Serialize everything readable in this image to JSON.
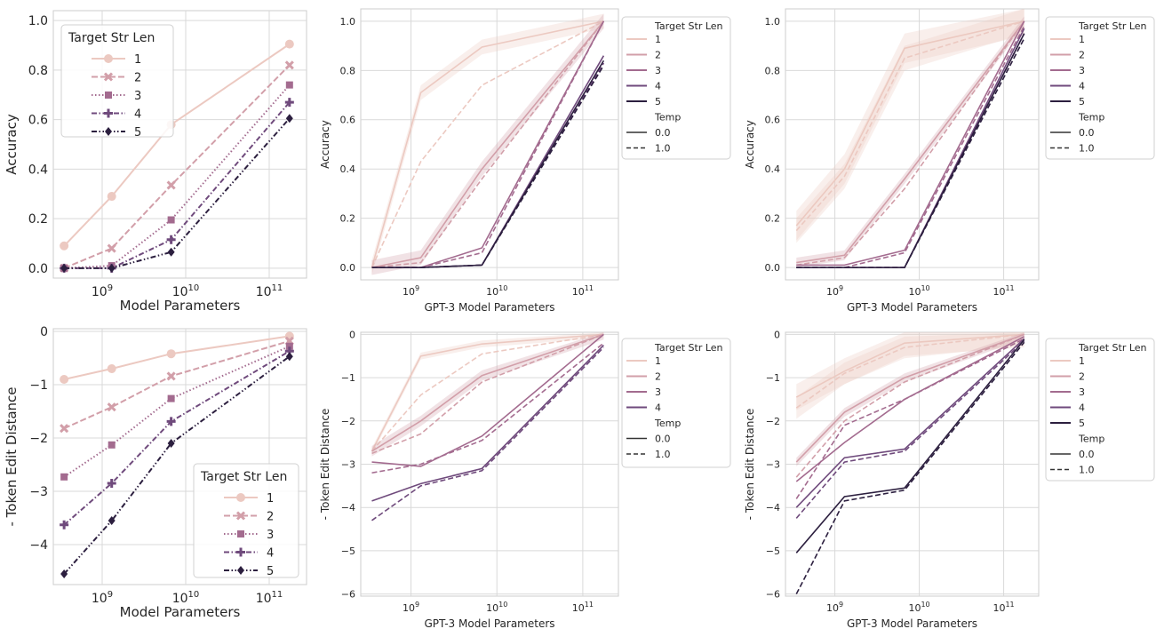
{
  "colors": {
    "len1": "#ecc9c1",
    "len2": "#d29fa9",
    "len3": "#a36b8f",
    "len4": "#6f4a7c",
    "len5": "#2c1f3f",
    "grid": "#d9d9d9",
    "axis_bg": "#ffffff"
  },
  "chart_data": [
    {
      "id": "p1",
      "type": "line",
      "xlabel": "Model Parameters",
      "ylabel": "Accuracy",
      "xscale": "log",
      "xlim": [
        260000000.0,
        280000000000.0
      ],
      "ylim": [
        -0.04,
        1.04
      ],
      "yticks": [
        0.0,
        0.2,
        0.4,
        0.6,
        0.8,
        1.0
      ],
      "ytick_labels": [
        "0.0",
        "0.2",
        "0.4",
        "0.6",
        "0.8",
        "1.0"
      ],
      "x": [
        350000000.0,
        1300000000.0,
        6700000000.0,
        175000000000.0
      ],
      "legend": {
        "title": "Target Str Len",
        "placement": "upper-left",
        "markers": true
      },
      "series": [
        {
          "name": "1",
          "color_key": "len1",
          "dash": "solid",
          "marker": "circle",
          "values": [
            0.09,
            0.29,
            0.58,
            0.905
          ]
        },
        {
          "name": "2",
          "color_key": "len2",
          "dash": "dashed",
          "marker": "x",
          "values": [
            0.0,
            0.08,
            0.335,
            0.82
          ]
        },
        {
          "name": "3",
          "color_key": "len3",
          "dash": "dotted",
          "marker": "square",
          "values": [
            0.0,
            0.01,
            0.195,
            0.74
          ]
        },
        {
          "name": "4",
          "color_key": "len4",
          "dash": "dashdot",
          "marker": "plus",
          "values": [
            0.0,
            0.0,
            0.115,
            0.67
          ]
        },
        {
          "name": "5",
          "color_key": "len5",
          "dash": "dashdotdot",
          "marker": "diamond",
          "values": [
            0.0,
            0.0,
            0.065,
            0.605
          ]
        }
      ]
    },
    {
      "id": "p2",
      "type": "line",
      "xlabel": "GPT-3 Model Parameters",
      "ylabel": "Accuracy",
      "xscale": "log",
      "xlim": [
        260000000.0,
        260000000000.0
      ],
      "ylim": [
        -0.05,
        1.05
      ],
      "yticks": [
        0.0,
        0.2,
        0.4,
        0.6,
        0.8,
        1.0
      ],
      "ytick_labels": [
        "0.0",
        "0.2",
        "0.4",
        "0.6",
        "0.8",
        "1.0"
      ],
      "x": [
        350000000.0,
        1300000000.0,
        6700000000.0,
        175000000000.0
      ],
      "legend": {
        "title": "Target Str Len",
        "placement": "outside-right",
        "temp_title": "Temp",
        "temp_entries": [
          "0.0",
          "1.0"
        ]
      },
      "series": [
        {
          "name": "1",
          "color_key": "len1",
          "temp": "0.0",
          "values": [
            0.0,
            0.71,
            0.895,
            1.0
          ],
          "band": 0.03
        },
        {
          "name": "1",
          "color_key": "len1",
          "temp": "1.0",
          "values": [
            0.0,
            0.43,
            0.74,
            1.0
          ],
          "band": 0.0
        },
        {
          "name": "2",
          "color_key": "len2",
          "temp": "0.0",
          "values": [
            0.0,
            0.04,
            0.4,
            1.0
          ],
          "band": 0.03
        },
        {
          "name": "2",
          "color_key": "len2",
          "temp": "1.0",
          "values": [
            0.0,
            0.02,
            0.36,
            1.0
          ],
          "band": 0.0
        },
        {
          "name": "3",
          "color_key": "len3",
          "temp": "0.0",
          "values": [
            0.0,
            0.0,
            0.08,
            1.0
          ],
          "band": 0.0
        },
        {
          "name": "3",
          "color_key": "len3",
          "temp": "1.0",
          "values": [
            0.0,
            0.0,
            0.06,
            1.0
          ],
          "band": 0.0
        },
        {
          "name": "4",
          "color_key": "len4",
          "temp": "0.0",
          "values": [
            0.0,
            0.0,
            0.01,
            0.86
          ],
          "band": 0.0
        },
        {
          "name": "4",
          "color_key": "len4",
          "temp": "1.0",
          "values": [
            0.0,
            0.0,
            0.01,
            0.83
          ],
          "band": 0.0
        },
        {
          "name": "5",
          "color_key": "len5",
          "temp": "0.0",
          "values": [
            0.0,
            0.0,
            0.01,
            0.84
          ],
          "band": 0.0
        },
        {
          "name": "5",
          "color_key": "len5",
          "temp": "1.0",
          "values": [
            0.0,
            0.0,
            0.01,
            0.82
          ],
          "band": 0.0
        }
      ],
      "legend_entries": [
        "1",
        "2",
        "3",
        "4",
        "5"
      ]
    },
    {
      "id": "p3",
      "type": "line",
      "xlabel": "GPT-3 Model Parameters",
      "ylabel": "Accuracy",
      "xscale": "log",
      "xlim": [
        260000000.0,
        260000000000.0
      ],
      "ylim": [
        -0.05,
        1.05
      ],
      "yticks": [
        0.0,
        0.2,
        0.4,
        0.6,
        0.8,
        1.0
      ],
      "ytick_labels": [
        "0.0",
        "0.2",
        "0.4",
        "0.6",
        "0.8",
        "1.0"
      ],
      "x": [
        350000000.0,
        1300000000.0,
        6700000000.0,
        175000000000.0
      ],
      "legend": {
        "title": "Target Str Len",
        "placement": "outside-right",
        "temp_title": "Temp",
        "temp_entries": [
          "0.0",
          "1.0"
        ]
      },
      "series": [
        {
          "name": "1",
          "color_key": "len1",
          "temp": "0.0",
          "values": [
            0.17,
            0.4,
            0.89,
            1.0
          ],
          "band": 0.06
        },
        {
          "name": "1",
          "color_key": "len1",
          "temp": "1.0",
          "values": [
            0.15,
            0.37,
            0.85,
            1.0
          ],
          "band": 0.05
        },
        {
          "name": "2",
          "color_key": "len2",
          "temp": "0.0",
          "values": [
            0.02,
            0.05,
            0.36,
            1.0
          ],
          "band": 0.02
        },
        {
          "name": "2",
          "color_key": "len2",
          "temp": "1.0",
          "values": [
            0.01,
            0.04,
            0.32,
            1.0
          ],
          "band": 0.0
        },
        {
          "name": "3",
          "color_key": "len3",
          "temp": "0.0",
          "values": [
            0.01,
            0.01,
            0.07,
            1.0
          ],
          "band": 0.0
        },
        {
          "name": "3",
          "color_key": "len3",
          "temp": "1.0",
          "values": [
            0.0,
            0.0,
            0.06,
            0.98
          ],
          "band": 0.0
        },
        {
          "name": "4",
          "color_key": "len4",
          "temp": "0.0",
          "values": [
            0.0,
            0.0,
            0.0,
            0.97
          ],
          "band": 0.0
        },
        {
          "name": "4",
          "color_key": "len4",
          "temp": "1.0",
          "values": [
            0.0,
            0.0,
            0.0,
            0.95
          ],
          "band": 0.0
        },
        {
          "name": "5",
          "color_key": "len5",
          "temp": "0.0",
          "values": [
            0.0,
            0.0,
            0.0,
            0.95
          ],
          "band": 0.0
        },
        {
          "name": "5",
          "color_key": "len5",
          "temp": "1.0",
          "values": [
            0.0,
            0.0,
            0.0,
            0.93
          ],
          "band": 0.0
        }
      ],
      "legend_entries": [
        "1",
        "2",
        "3",
        "4",
        "5"
      ]
    },
    {
      "id": "p4",
      "type": "line",
      "xlabel": "Model Parameters",
      "ylabel": "- Token Edit Distance",
      "xscale": "log",
      "xlim": [
        260000000.0,
        280000000000.0
      ],
      "ylim": [
        -4.75,
        0.05
      ],
      "yticks": [
        0,
        -1,
        -2,
        -3,
        -4
      ],
      "ytick_labels": [
        "0",
        "−1",
        "−2",
        "−3",
        "−4"
      ],
      "x": [
        350000000.0,
        1300000000.0,
        6700000000.0,
        175000000000.0
      ],
      "legend": {
        "title": "Target Str Len",
        "placement": "lower-right",
        "markers": true
      },
      "series": [
        {
          "name": "1",
          "color_key": "len1",
          "dash": "solid",
          "marker": "circle",
          "values": [
            -0.9,
            -0.7,
            -0.42,
            -0.09
          ]
        },
        {
          "name": "2",
          "color_key": "len2",
          "dash": "dashed",
          "marker": "x",
          "values": [
            -1.82,
            -1.42,
            -0.84,
            -0.18
          ]
        },
        {
          "name": "3",
          "color_key": "len3",
          "dash": "dotted",
          "marker": "square",
          "values": [
            -2.73,
            -2.13,
            -1.26,
            -0.28
          ]
        },
        {
          "name": "4",
          "color_key": "len4",
          "dash": "dashdot",
          "marker": "plus",
          "values": [
            -3.63,
            -2.85,
            -1.69,
            -0.37
          ]
        },
        {
          "name": "5",
          "color_key": "len5",
          "dash": "dashdotdot",
          "marker": "diamond",
          "values": [
            -4.55,
            -3.55,
            -2.1,
            -0.47
          ]
        }
      ]
    },
    {
      "id": "p5",
      "type": "line",
      "xlabel": "GPT-3 Model Parameters",
      "ylabel": "- Token Edit Distance",
      "xscale": "log",
      "xlim": [
        260000000.0,
        260000000000.0
      ],
      "ylim": [
        -6.05,
        0.05
      ],
      "yticks": [
        0,
        -1,
        -2,
        -3,
        -4,
        -5,
        -6
      ],
      "ytick_labels": [
        "0",
        "−1",
        "−2",
        "−3",
        "−4",
        "−5",
        "−6"
      ],
      "x": [
        350000000.0,
        1300000000.0,
        6700000000.0,
        175000000000.0
      ],
      "legend": {
        "title": "Target Str Len",
        "placement": "outside-right",
        "temp_title": "Temp",
        "temp_entries": [
          "0.0",
          "1.0"
        ]
      },
      "series": [
        {
          "name": "1",
          "color_key": "len1",
          "temp": "0.0",
          "values": [
            -2.7,
            -0.5,
            -0.22,
            0.0
          ],
          "band": 0.08
        },
        {
          "name": "1",
          "color_key": "len1",
          "temp": "1.0",
          "values": [
            -2.7,
            -1.4,
            -0.45,
            0.0
          ],
          "band": 0.0
        },
        {
          "name": "2",
          "color_key": "len2",
          "temp": "0.0",
          "values": [
            -2.7,
            -2.0,
            -0.95,
            0.0
          ],
          "band": 0.12
        },
        {
          "name": "2",
          "color_key": "len2",
          "temp": "1.0",
          "values": [
            -2.75,
            -2.3,
            -1.1,
            0.0
          ],
          "band": 0.0
        },
        {
          "name": "3",
          "color_key": "len3",
          "temp": "0.0",
          "values": [
            -2.95,
            -3.05,
            -2.35,
            0.0
          ],
          "band": 0.0
        },
        {
          "name": "3",
          "color_key": "len3",
          "temp": "1.0",
          "values": [
            -3.2,
            -3.0,
            -2.45,
            -0.2
          ],
          "band": 0.0
        },
        {
          "name": "4",
          "color_key": "len4",
          "temp": "0.0",
          "values": [
            -3.85,
            -3.45,
            -3.1,
            -0.25
          ],
          "band": 0.0
        },
        {
          "name": "4",
          "color_key": "len4",
          "temp": "1.0",
          "values": [
            -4.3,
            -3.5,
            -3.15,
            -0.3
          ],
          "band": 0.0
        }
      ],
      "legend_entries": [
        "1",
        "2",
        "3",
        "4"
      ]
    },
    {
      "id": "p6",
      "type": "line",
      "xlabel": "GPT-3 Model Parameters",
      "ylabel": "- Token Edit Distance",
      "xscale": "log",
      "xlim": [
        260000000.0,
        260000000000.0
      ],
      "ylim": [
        -6.05,
        0.05
      ],
      "yticks": [
        0,
        -1,
        -2,
        -3,
        -4,
        -5,
        -6
      ],
      "ytick_labels": [
        "0",
        "−1",
        "−2",
        "−3",
        "−4",
        "−5",
        "−6"
      ],
      "x": [
        350000000.0,
        1300000000.0,
        6700000000.0,
        175000000000.0
      ],
      "legend": {
        "title": "Target Str Len",
        "placement": "outside-right",
        "temp_title": "Temp",
        "temp_entries": [
          "0.0",
          "1.0"
        ]
      },
      "series": [
        {
          "name": "1",
          "color_key": "len1",
          "temp": "0.0",
          "values": [
            -1.45,
            -0.85,
            -0.2,
            0.0
          ],
          "band": 0.3
        },
        {
          "name": "1",
          "color_key": "len1",
          "temp": "1.0",
          "values": [
            -1.7,
            -0.9,
            -0.3,
            0.0
          ],
          "band": 0.25
        },
        {
          "name": "2",
          "color_key": "len2",
          "temp": "0.0",
          "values": [
            -2.95,
            -1.8,
            -1.0,
            0.0
          ],
          "band": 0.1
        },
        {
          "name": "2",
          "color_key": "len2",
          "temp": "1.0",
          "values": [
            -3.3,
            -2.0,
            -1.1,
            0.0
          ],
          "band": 0.0
        },
        {
          "name": "3",
          "color_key": "len3",
          "temp": "0.0",
          "values": [
            -3.4,
            -2.5,
            -1.5,
            -0.05
          ],
          "band": 0.0
        },
        {
          "name": "3",
          "color_key": "len3",
          "temp": "1.0",
          "values": [
            -3.8,
            -2.1,
            -1.5,
            -0.1
          ],
          "band": 0.0
        },
        {
          "name": "4",
          "color_key": "len4",
          "temp": "0.0",
          "values": [
            -4.0,
            -2.85,
            -2.65,
            -0.1
          ],
          "band": 0.0
        },
        {
          "name": "4",
          "color_key": "len4",
          "temp": "1.0",
          "values": [
            -4.25,
            -2.95,
            -2.7,
            -0.15
          ],
          "band": 0.0
        },
        {
          "name": "5",
          "color_key": "len5",
          "temp": "0.0",
          "values": [
            -5.05,
            -3.75,
            -3.55,
            -0.12
          ],
          "band": 0.0
        },
        {
          "name": "5",
          "color_key": "len5",
          "temp": "1.0",
          "values": [
            -6.0,
            -3.85,
            -3.6,
            -0.18
          ],
          "band": 0.0
        }
      ],
      "legend_entries": [
        "1",
        "2",
        "3",
        "4",
        "5"
      ]
    }
  ]
}
